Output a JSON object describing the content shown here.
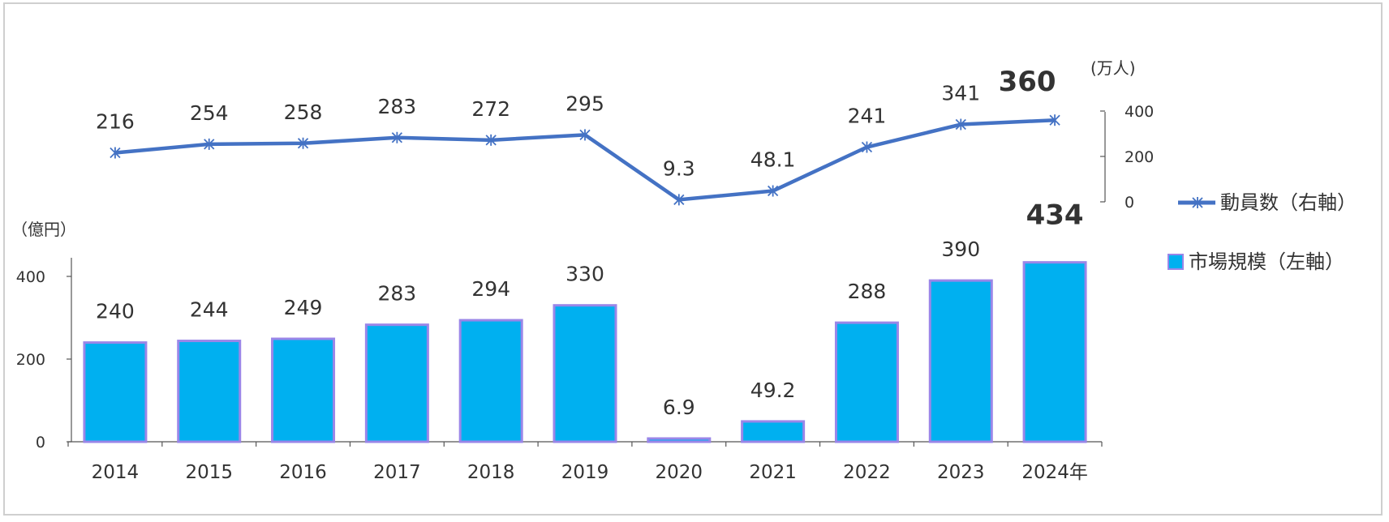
{
  "chart_data": {
    "type": "bar",
    "categories": [
      "2014",
      "2015",
      "2016",
      "2017",
      "2018",
      "2019",
      "2020",
      "2021",
      "2022",
      "2023",
      "2024年"
    ],
    "series": [
      {
        "name": "市場規模（左軸）",
        "type": "bar",
        "axis": "left",
        "values": [
          240,
          244,
          249,
          283,
          294,
          330,
          6.9,
          49.2,
          288,
          390,
          434
        ],
        "labels": [
          "240",
          "244",
          "249",
          "283",
          "294",
          "330",
          "6.9",
          "49.2",
          "288",
          "390",
          "434"
        ]
      },
      {
        "name": "動員数（右軸）",
        "type": "line",
        "axis": "right",
        "values": [
          216,
          254,
          258,
          283,
          272,
          295,
          9.3,
          48.1,
          241,
          341,
          360
        ],
        "labels": [
          "216",
          "254",
          "258",
          "283",
          "272",
          "295",
          "9.3",
          "48.1",
          "241",
          "341",
          "360"
        ]
      }
    ],
    "left_axis": {
      "unit": "（億円）",
      "ticks": [
        "0",
        "200",
        "400"
      ],
      "ylim": [
        0,
        450
      ]
    },
    "right_axis": {
      "unit": "(万人)",
      "ticks": [
        "0",
        "200",
        "400"
      ],
      "ylim": [
        0,
        400
      ]
    },
    "colors": {
      "bar_fill": "#00b0f0",
      "bar_border": "#9a86e8",
      "line": "#4472c4",
      "axis": "#555555"
    },
    "legend": {
      "placement": "right"
    },
    "grid": false
  }
}
